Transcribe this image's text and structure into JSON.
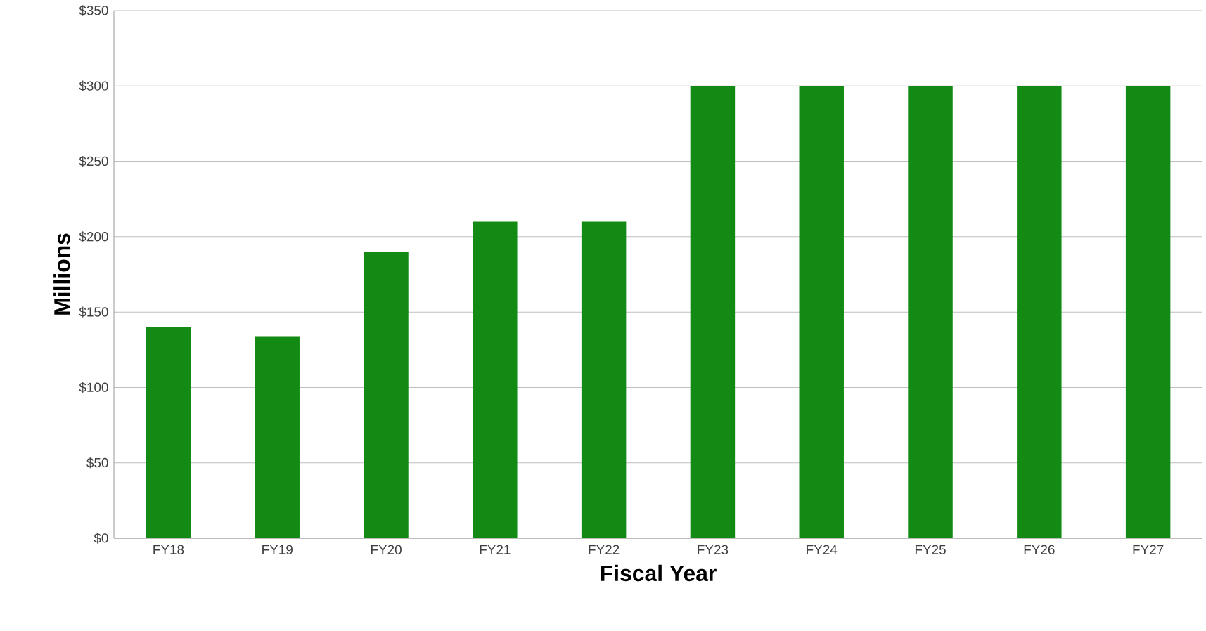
{
  "chart_data": {
    "type": "bar",
    "xlabel": "Fiscal Year",
    "ylabel": "Millions",
    "categories": [
      "FY18",
      "FY19",
      "FY20",
      "FY21",
      "FY22",
      "FY23",
      "FY24",
      "FY25",
      "FY26",
      "FY27"
    ],
    "values": [
      140,
      134,
      190,
      210,
      210,
      300,
      300,
      300,
      300,
      300
    ],
    "color": "#138a13",
    "ylim": [
      0,
      350
    ],
    "yticks": [
      {
        "value": 0,
        "label": "$0"
      },
      {
        "value": 50,
        "label": "$50"
      },
      {
        "value": 100,
        "label": "$100"
      },
      {
        "value": 150,
        "label": "$150"
      },
      {
        "value": 200,
        "label": "$200"
      },
      {
        "value": 250,
        "label": "$250"
      },
      {
        "value": 300,
        "label": "$300"
      },
      {
        "value": 350,
        "label": "$350"
      }
    ],
    "grid": "y"
  }
}
